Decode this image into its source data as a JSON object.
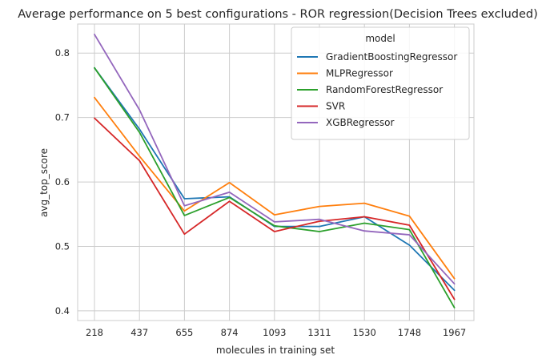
{
  "chart_data": {
    "type": "line",
    "title": "Average performance on 5 best configurations - ROR regression(Decision Trees excluded)",
    "xlabel": "molecules in training set",
    "ylabel": "avg_top_score",
    "categories": [
      "218",
      "437",
      "655",
      "874",
      "1093",
      "1311",
      "1530",
      "1748",
      "1967"
    ],
    "yticks": [
      "0.4",
      "0.5",
      "0.6",
      "0.7",
      "0.8"
    ],
    "ylim": [
      0.385,
      0.845
    ],
    "grid": true,
    "legend": {
      "title": "model",
      "placement": "top-right"
    },
    "series": [
      {
        "name": "GradientBoostingRegressor",
        "color": "#1f77b4",
        "values": [
          0.777,
          0.682,
          0.574,
          0.577,
          0.531,
          0.531,
          0.546,
          0.502,
          0.432
        ]
      },
      {
        "name": "MLPRegressor",
        "color": "#ff7f0e",
        "values": [
          0.731,
          0.64,
          0.555,
          0.599,
          0.549,
          0.562,
          0.567,
          0.547,
          0.45
        ]
      },
      {
        "name": "RandomForestRegressor",
        "color": "#2ca02c",
        "values": [
          0.777,
          0.677,
          0.548,
          0.576,
          0.532,
          0.523,
          0.536,
          0.526,
          0.405
        ]
      },
      {
        "name": "SVR",
        "color": "#d62728",
        "values": [
          0.699,
          0.633,
          0.519,
          0.57,
          0.523,
          0.539,
          0.546,
          0.533,
          0.418
        ]
      },
      {
        "name": "XGBRegressor",
        "color": "#9467bd",
        "values": [
          0.829,
          0.712,
          0.563,
          0.584,
          0.538,
          0.542,
          0.524,
          0.518,
          0.442
        ]
      }
    ]
  }
}
